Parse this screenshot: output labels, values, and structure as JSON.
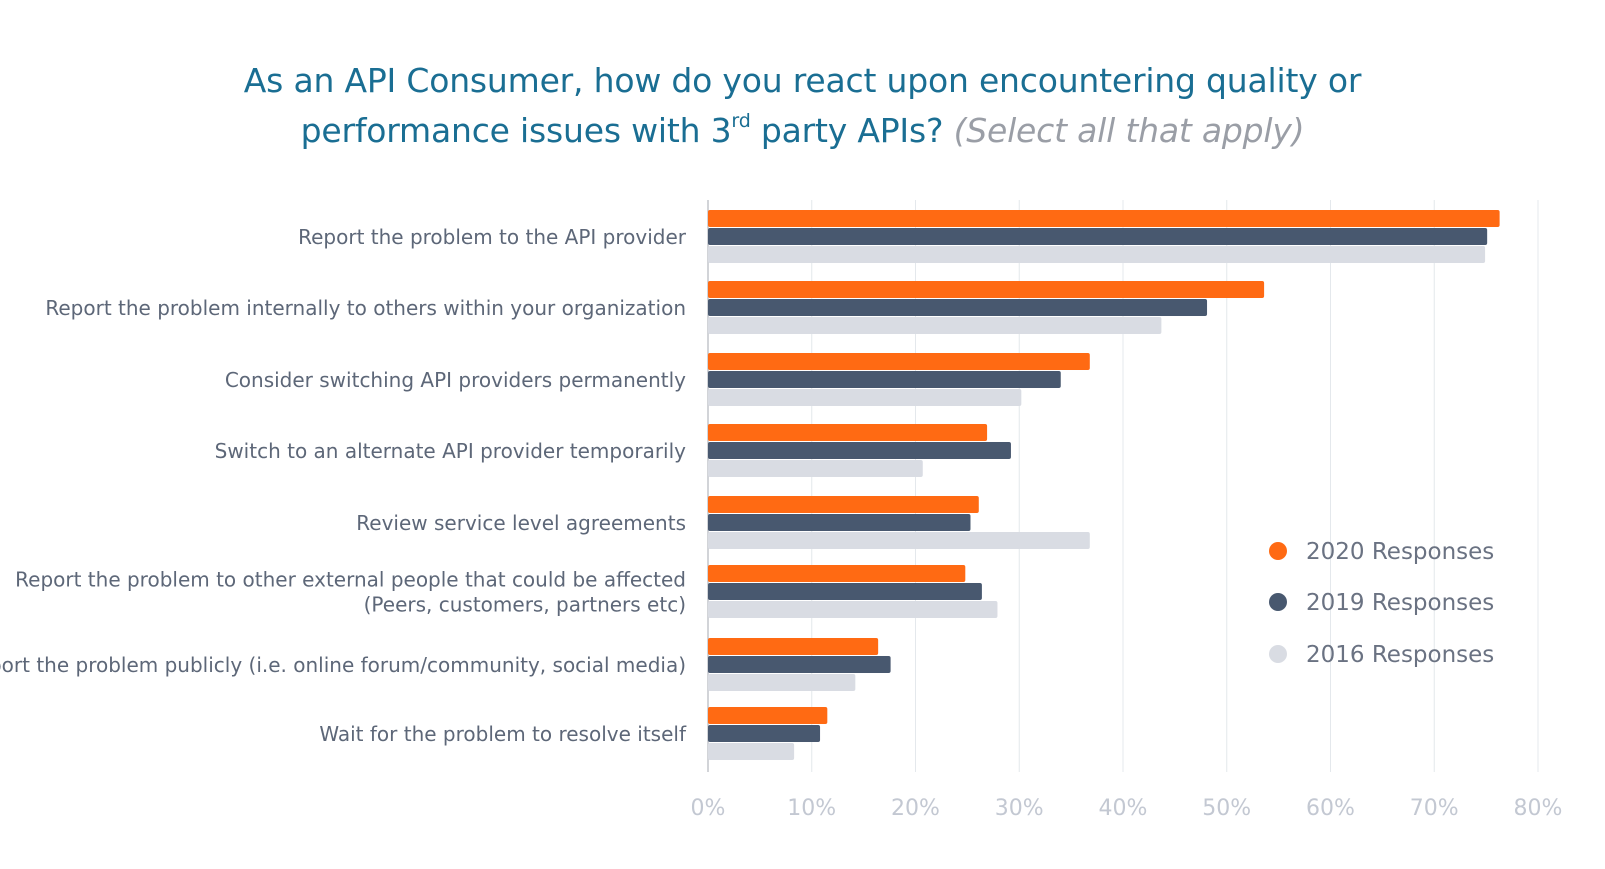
{
  "title": {
    "line1": "As an API Consumer, how do you react upon encountering quality or",
    "line2_pre": "performance issues with 3",
    "line2_sup": "rd",
    "line2_post": " party APIs?",
    "note": "(Select all that apply)"
  },
  "colors": {
    "2020": "#ff6a13",
    "2019": "#48586f",
    "2016": "#d9dce3",
    "grid": "#e4e8ec",
    "axis": "#c3c6cc",
    "tick_text": "#c3c8d2",
    "label_text": "#5d6778",
    "legend_text": "#6a7282"
  },
  "chart_data": {
    "type": "bar",
    "orientation": "horizontal",
    "categories": [
      "Report the problem to the API provider",
      "Report the problem internally to others within your organization",
      "Consider switching API providers permanently",
      "Switch to an alternate API provider temporarily",
      "Review service level agreements",
      "Report the problem to other external people that could be affected\n(Peers, customers, partners etc)",
      "Report the problem publicly (i.e. online forum/community, social media)",
      "Wait for the problem to resolve itself"
    ],
    "series": [
      {
        "name": "2020 Responses",
        "color": "#ff6a13",
        "values": [
          76.3,
          53.6,
          36.8,
          26.9,
          26.1,
          24.8,
          16.4,
          11.5
        ]
      },
      {
        "name": "2019 Responses",
        "color": "#48586f",
        "values": [
          75.1,
          48.1,
          34.0,
          29.2,
          25.3,
          26.4,
          17.6,
          10.8
        ]
      },
      {
        "name": "2016 Responses",
        "color": "#d9dce3",
        "values": [
          74.9,
          43.7,
          30.2,
          20.7,
          36.8,
          27.9,
          14.2,
          8.3
        ]
      }
    ],
    "xlim": [
      0,
      80
    ],
    "xticks": [
      "0%",
      "10%",
      "20%",
      "30%",
      "40%",
      "50%",
      "60%",
      "70%",
      "80%"
    ],
    "grid": true,
    "legend_position": "right"
  }
}
